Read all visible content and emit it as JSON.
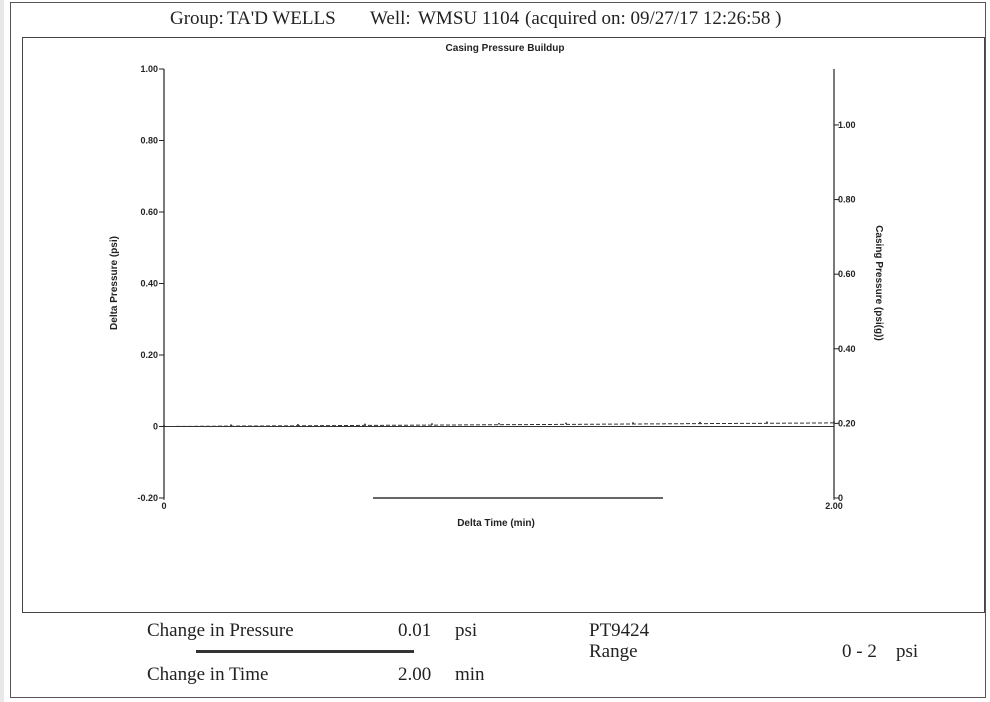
{
  "header": {
    "group_label": "Group:",
    "group_value": "TA'D WELLS",
    "well_label": "Well:",
    "well_value": "WMSU 1104",
    "acquired_text": "(acquired on: 09/27/17 12:26:58 )"
  },
  "chart_data": {
    "type": "line",
    "title": "Casing Pressure Buildup",
    "xlabel": "Delta Time (min)",
    "ylabel": "Delta Pressure (psi)",
    "y2label": "Casing Pressure (psi(g))",
    "xlim": [
      0,
      2.0
    ],
    "ylim": [
      -0.2,
      1.0
    ],
    "y2lim": [
      0,
      1.15
    ],
    "x_ticks": [
      "0",
      "2.00"
    ],
    "y_ticks": [
      {
        "value": 1.0,
        "label": "1.00"
      },
      {
        "value": 0.8,
        "label": "0.80"
      },
      {
        "value": 0.6,
        "label": "0.60"
      },
      {
        "value": 0.4,
        "label": "0.40"
      },
      {
        "value": 0.2,
        "label": "0.20"
      },
      {
        "value": 0.0,
        "label": "0"
      },
      {
        "value": -0.2,
        "label": "-0.20"
      }
    ],
    "y2_ticks": [
      {
        "value": 1.0,
        "label": "1.00"
      },
      {
        "value": 0.8,
        "label": "0.80"
      },
      {
        "value": 0.6,
        "label": "0.60"
      },
      {
        "value": 0.4,
        "label": "0.40"
      },
      {
        "value": 0.2,
        "label": "0.20"
      },
      {
        "value": 0.0,
        "label": "0"
      }
    ],
    "series": [
      {
        "axis": "left",
        "color": "#333333",
        "style": "dashed",
        "x": [
          0,
          0.2,
          0.4,
          0.6,
          0.8,
          1.0,
          1.2,
          1.4,
          1.6,
          1.8,
          2.0
        ],
        "y": [
          0.0,
          0.001,
          0.002,
          0.003,
          0.004,
          0.005,
          0.006,
          0.007,
          0.008,
          0.009,
          0.01
        ]
      }
    ],
    "grid": false
  },
  "footer": {
    "change_pressure_label": "Change in Pressure",
    "change_pressure_value": "0.01",
    "change_pressure_unit": "psi",
    "change_time_label": "Change in Time",
    "change_time_value": "2.00",
    "change_time_unit": "min",
    "sensor_id": "PT9424",
    "range_label": "Range",
    "range_value": "0 - 2",
    "range_unit": "psi"
  }
}
